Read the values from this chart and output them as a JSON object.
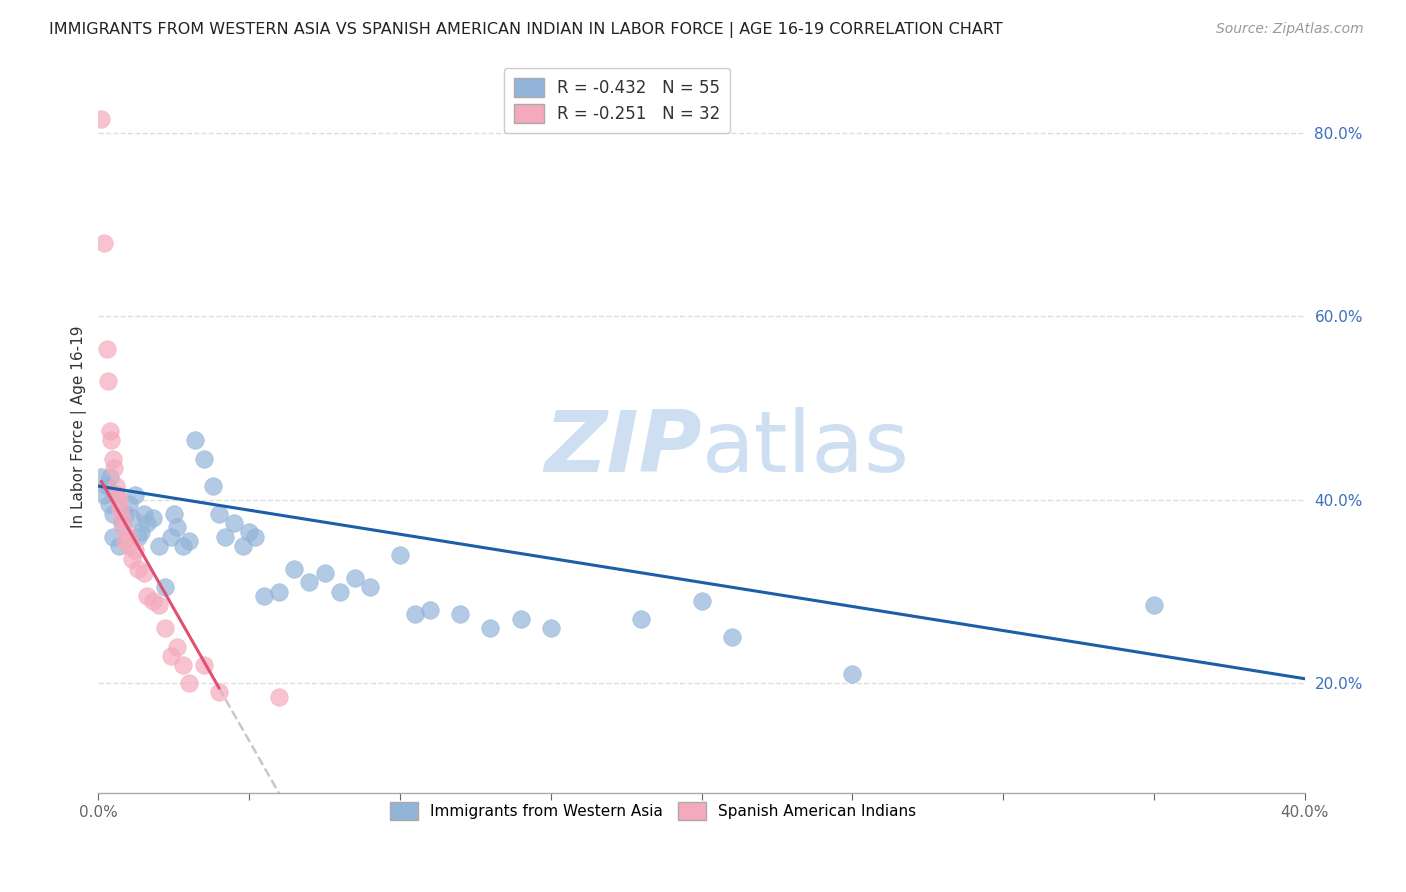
{
  "title": "IMMIGRANTS FROM WESTERN ASIA VS SPANISH AMERICAN INDIAN IN LABOR FORCE | AGE 16-19 CORRELATION CHART",
  "source": "Source: ZipAtlas.com",
  "ylabel": "In Labor Force | Age 16-19",
  "legend_label_blue": "Immigrants from Western Asia",
  "legend_label_pink": "Spanish American Indians",
  "R_blue": -0.432,
  "N_blue": 55,
  "R_pink": -0.251,
  "N_pink": 32,
  "color_blue": "#92B4D8",
  "color_pink": "#F4AABC",
  "color_blue_line": "#1C5FA8",
  "color_pink_line": "#E05070",
  "color_gray_dashed": "#C8C8C8",
  "xlim": [
    0.0,
    0.4
  ],
  "ylim": [
    0.08,
    0.88
  ],
  "x_ticks": [
    0.0,
    0.05,
    0.1,
    0.15,
    0.2,
    0.25,
    0.3,
    0.35,
    0.4
  ],
  "x_tick_labels_show": [
    "0.0%",
    "",
    "",
    "",
    "",
    "",
    "",
    "",
    "40.0%"
  ],
  "y_ticks_right": [
    0.2,
    0.4,
    0.6,
    0.8
  ],
  "y_tick_labels_right": [
    "20.0%",
    "40.0%",
    "60.0%",
    "80.0%"
  ],
  "blue_points": [
    [
      0.001,
      0.425
    ],
    [
      0.002,
      0.405
    ],
    [
      0.003,
      0.415
    ],
    [
      0.0035,
      0.395
    ],
    [
      0.004,
      0.425
    ],
    [
      0.005,
      0.385
    ],
    [
      0.005,
      0.36
    ],
    [
      0.006,
      0.405
    ],
    [
      0.007,
      0.35
    ],
    [
      0.008,
      0.375
    ],
    [
      0.009,
      0.385
    ],
    [
      0.01,
      0.395
    ],
    [
      0.011,
      0.38
    ],
    [
      0.012,
      0.405
    ],
    [
      0.013,
      0.36
    ],
    [
      0.014,
      0.365
    ],
    [
      0.015,
      0.385
    ],
    [
      0.016,
      0.375
    ],
    [
      0.018,
      0.38
    ],
    [
      0.02,
      0.35
    ],
    [
      0.022,
      0.305
    ],
    [
      0.024,
      0.36
    ],
    [
      0.025,
      0.385
    ],
    [
      0.026,
      0.37
    ],
    [
      0.028,
      0.35
    ],
    [
      0.03,
      0.355
    ],
    [
      0.032,
      0.465
    ],
    [
      0.035,
      0.445
    ],
    [
      0.038,
      0.415
    ],
    [
      0.04,
      0.385
    ],
    [
      0.042,
      0.36
    ],
    [
      0.045,
      0.375
    ],
    [
      0.048,
      0.35
    ],
    [
      0.05,
      0.365
    ],
    [
      0.052,
      0.36
    ],
    [
      0.055,
      0.295
    ],
    [
      0.06,
      0.3
    ],
    [
      0.065,
      0.325
    ],
    [
      0.07,
      0.31
    ],
    [
      0.075,
      0.32
    ],
    [
      0.08,
      0.3
    ],
    [
      0.085,
      0.315
    ],
    [
      0.09,
      0.305
    ],
    [
      0.1,
      0.34
    ],
    [
      0.105,
      0.275
    ],
    [
      0.11,
      0.28
    ],
    [
      0.12,
      0.275
    ],
    [
      0.13,
      0.26
    ],
    [
      0.14,
      0.27
    ],
    [
      0.15,
      0.26
    ],
    [
      0.18,
      0.27
    ],
    [
      0.2,
      0.29
    ],
    [
      0.21,
      0.25
    ],
    [
      0.25,
      0.21
    ],
    [
      0.35,
      0.285
    ]
  ],
  "pink_points": [
    [
      0.001,
      0.815
    ],
    [
      0.002,
      0.68
    ],
    [
      0.003,
      0.565
    ],
    [
      0.0033,
      0.53
    ],
    [
      0.004,
      0.475
    ],
    [
      0.0042,
      0.465
    ],
    [
      0.005,
      0.445
    ],
    [
      0.0052,
      0.435
    ],
    [
      0.006,
      0.415
    ],
    [
      0.0062,
      0.405
    ],
    [
      0.007,
      0.4
    ],
    [
      0.0072,
      0.39
    ],
    [
      0.008,
      0.38
    ],
    [
      0.0082,
      0.37
    ],
    [
      0.009,
      0.355
    ],
    [
      0.01,
      0.36
    ],
    [
      0.0102,
      0.35
    ],
    [
      0.011,
      0.335
    ],
    [
      0.012,
      0.345
    ],
    [
      0.013,
      0.325
    ],
    [
      0.015,
      0.32
    ],
    [
      0.016,
      0.295
    ],
    [
      0.018,
      0.29
    ],
    [
      0.02,
      0.285
    ],
    [
      0.022,
      0.26
    ],
    [
      0.024,
      0.23
    ],
    [
      0.026,
      0.24
    ],
    [
      0.028,
      0.22
    ],
    [
      0.03,
      0.2
    ],
    [
      0.035,
      0.22
    ],
    [
      0.04,
      0.19
    ],
    [
      0.06,
      0.185
    ]
  ],
  "watermark_zip": "ZIP",
  "watermark_atlas": "atlas",
  "background_color": "#FFFFFF",
  "grid_color": "#DDDDDD"
}
